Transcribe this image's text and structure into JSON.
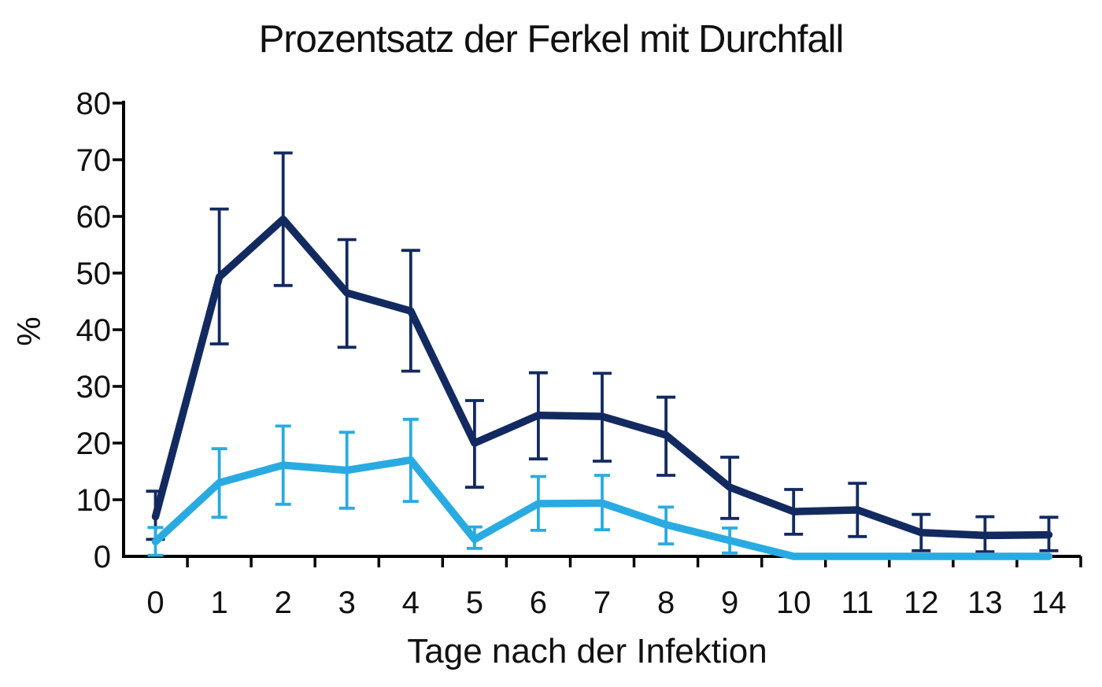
{
  "page": {
    "background": "#ffffff"
  },
  "chart_data": {
    "type": "line",
    "title": "Prozentsatz der Ferkel mit Durchfall",
    "xlabel": "Tage nach der Infektion",
    "ylabel": "%",
    "x": [
      0,
      1,
      2,
      3,
      4,
      5,
      6,
      7,
      8,
      9,
      10,
      11,
      12,
      13,
      14
    ],
    "xtick_labels": [
      "0",
      "1",
      "2",
      "3",
      "4",
      "5",
      "6",
      "7",
      "8",
      "9",
      "10",
      "11",
      "12",
      "13",
      "14"
    ],
    "ytick_values": [
      0,
      10,
      20,
      30,
      40,
      50,
      60,
      70,
      80
    ],
    "ytick_labels": [
      "0",
      "10",
      "20",
      "30",
      "40",
      "50",
      "60",
      "70",
      "80"
    ],
    "ylim": [
      0,
      80
    ],
    "grid": false,
    "legend": "none",
    "error_bars": true,
    "axis_color": "#000000",
    "text_color": "#111111",
    "series": [
      {
        "name": "dark-blue-series",
        "color": "#132a60",
        "values": [
          7.0,
          49.3,
          59.5,
          46.5,
          43.3,
          20.0,
          24.9,
          24.7,
          21.4,
          12.2,
          7.9,
          8.2,
          4.2,
          3.7,
          3.8
        ],
        "error_low": [
          3.0,
          37.5,
          47.8,
          36.9,
          32.7,
          12.2,
          17.2,
          16.8,
          14.3,
          6.7,
          3.9,
          3.5,
          1.0,
          0.8,
          1.0
        ],
        "error_high": [
          11.5,
          61.3,
          71.2,
          55.9,
          54.0,
          27.5,
          32.4,
          32.3,
          28.1,
          17.5,
          11.8,
          12.9,
          7.4,
          7.0,
          6.9
        ]
      },
      {
        "name": "light-blue-series",
        "color": "#29abe2",
        "values": [
          2.6,
          13.0,
          16.1,
          15.2,
          17.0,
          3.0,
          9.3,
          9.4,
          5.6,
          2.8,
          0,
          0,
          0,
          0,
          0
        ],
        "error_low": [
          0.2,
          6.9,
          9.2,
          8.5,
          9.7,
          1.4,
          4.6,
          4.7,
          2.2,
          0.6,
          null,
          null,
          null,
          null,
          null
        ],
        "error_high": [
          5.1,
          19.0,
          23.0,
          21.9,
          24.2,
          5.2,
          14.1,
          14.3,
          8.7,
          5.0,
          null,
          null,
          null,
          null,
          null
        ]
      }
    ]
  }
}
